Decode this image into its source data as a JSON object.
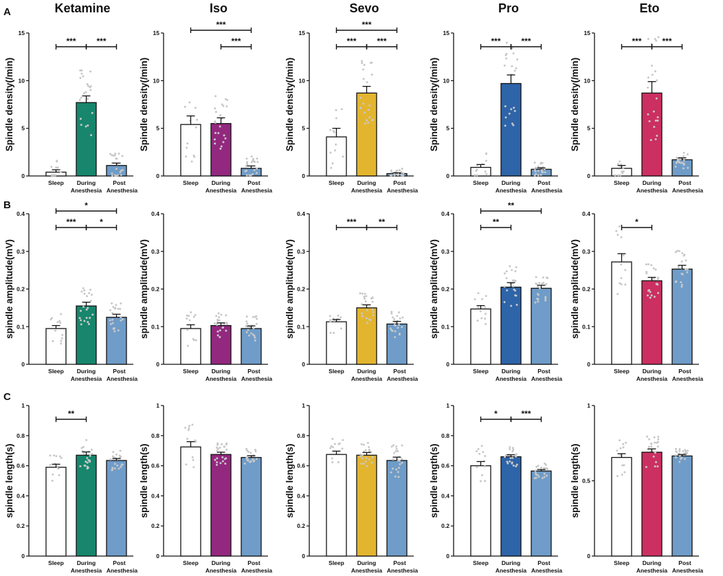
{
  "panel_labels": {
    "a": "A",
    "b": "B",
    "c": "C"
  },
  "column_titles": [
    "Ketamine",
    "Iso",
    "Sevo",
    "Pro",
    "Eto"
  ],
  "x_categories": [
    {
      "line1": "Sleep",
      "line2": ""
    },
    {
      "line1": "During",
      "line2": "Anesthesia"
    },
    {
      "line1": "Post",
      "line2": "Anesthesia"
    }
  ],
  "colors": {
    "sleep": "#ffffff",
    "post": "#6f9cc8",
    "Ketamine": "#17866c",
    "Iso": "#93287f",
    "Sevo": "#e3b52f",
    "Pro": "#2e64a8",
    "Eto": "#cc2f62",
    "dots": "#c8c8c8",
    "axis": "#111111"
  },
  "chart_data": [
    {
      "type": "bar",
      "row": "A",
      "drug": "Ketamine",
      "ylabel": "Spindle density(/min)",
      "ylim": [
        0,
        15
      ],
      "yticks": [
        0,
        5,
        10,
        15
      ],
      "categories": [
        "Sleep",
        "During Anesthesia",
        "Post Anesthesia"
      ],
      "values": [
        0.4,
        7.7,
        1.1
      ],
      "errors": [
        0.25,
        0.7,
        0.25
      ],
      "sig": [
        {
          "from": 0,
          "to": 1,
          "label": "***",
          "level": 0
        },
        {
          "from": 1,
          "to": 2,
          "label": "***",
          "level": 0
        }
      ]
    },
    {
      "type": "bar",
      "row": "A",
      "drug": "Iso",
      "ylabel": "Spindle density(/min)",
      "ylim": [
        0,
        15
      ],
      "yticks": [
        0,
        5,
        10,
        15
      ],
      "categories": [
        "Sleep",
        "During Anesthesia",
        "Post Anesthesia"
      ],
      "values": [
        5.4,
        5.5,
        0.8
      ],
      "errors": [
        0.9,
        0.6,
        0.25
      ],
      "sig": [
        {
          "from": 1,
          "to": 2,
          "label": "***",
          "level": 0
        },
        {
          "from": 0,
          "to": 2,
          "label": "***",
          "level": 1
        }
      ]
    },
    {
      "type": "bar",
      "row": "A",
      "drug": "Sevo",
      "ylabel": "Spindle density(/min)",
      "ylim": [
        0,
        15
      ],
      "yticks": [
        0,
        5,
        10,
        15
      ],
      "categories": [
        "Sleep",
        "During Anesthesia",
        "Post Anesthesia"
      ],
      "values": [
        4.1,
        8.7,
        0.25
      ],
      "errors": [
        0.9,
        0.7,
        0.08
      ],
      "sig": [
        {
          "from": 0,
          "to": 1,
          "label": "***",
          "level": 0
        },
        {
          "from": 1,
          "to": 2,
          "label": "***",
          "level": 0
        },
        {
          "from": 0,
          "to": 2,
          "label": "***",
          "level": 1
        }
      ]
    },
    {
      "type": "bar",
      "row": "A",
      "drug": "Pro",
      "ylabel": "Spindle density(/min)",
      "ylim": [
        0,
        15
      ],
      "yticks": [
        0,
        5,
        10,
        15
      ],
      "categories": [
        "Sleep",
        "During Anesthesia",
        "Post Anesthesia"
      ],
      "values": [
        0.9,
        9.7,
        0.7
      ],
      "errors": [
        0.3,
        0.9,
        0.15
      ],
      "sig": [
        {
          "from": 0,
          "to": 1,
          "label": "***",
          "level": 0
        },
        {
          "from": 1,
          "to": 2,
          "label": "***",
          "level": 0
        }
      ]
    },
    {
      "type": "bar",
      "row": "A",
      "drug": "Eto",
      "ylabel": "Spindle density(/min)",
      "ylim": [
        0,
        15
      ],
      "yticks": [
        0,
        5,
        10,
        15
      ],
      "categories": [
        "Sleep",
        "During Anesthesia",
        "Post Anesthesia"
      ],
      "values": [
        0.8,
        8.7,
        1.7
      ],
      "errors": [
        0.3,
        1.2,
        0.2
      ],
      "sig": [
        {
          "from": 0,
          "to": 1,
          "label": "***",
          "level": 0
        },
        {
          "from": 1,
          "to": 2,
          "label": "***",
          "level": 0
        }
      ]
    },
    {
      "type": "bar",
      "row": "B",
      "drug": "Ketamine",
      "ylabel": "spindle amplitude(mV)",
      "ylim": [
        0,
        0.4
      ],
      "yticks": [
        0,
        0.1,
        0.2,
        0.3,
        0.4
      ],
      "categories": [
        "Sleep",
        "During Anesthesia",
        "Post Anesthesia"
      ],
      "values": [
        0.095,
        0.155,
        0.125
      ],
      "errors": [
        0.008,
        0.01,
        0.008
      ],
      "sig": [
        {
          "from": 0,
          "to": 1,
          "label": "***",
          "level": 0
        },
        {
          "from": 1,
          "to": 2,
          "label": "*",
          "level": 0
        },
        {
          "from": 0,
          "to": 2,
          "label": "*",
          "level": 1
        }
      ]
    },
    {
      "type": "bar",
      "row": "B",
      "drug": "Iso",
      "ylabel": "spindle amplitude(mV)",
      "ylim": [
        0,
        0.4
      ],
      "yticks": [
        0,
        0.1,
        0.2,
        0.3,
        0.4
      ],
      "categories": [
        "Sleep",
        "During Anesthesia",
        "Post Anesthesia"
      ],
      "values": [
        0.095,
        0.103,
        0.095
      ],
      "errors": [
        0.01,
        0.007,
        0.007
      ],
      "sig": []
    },
    {
      "type": "bar",
      "row": "B",
      "drug": "Sevo",
      "ylabel": "spindle amplitude(mV)",
      "ylim": [
        0,
        0.4
      ],
      "yticks": [
        0,
        0.1,
        0.2,
        0.3,
        0.4
      ],
      "categories": [
        "Sleep",
        "During Anesthesia",
        "Post Anesthesia"
      ],
      "values": [
        0.113,
        0.15,
        0.107
      ],
      "errors": [
        0.006,
        0.008,
        0.007
      ],
      "sig": [
        {
          "from": 0,
          "to": 1,
          "label": "***",
          "level": 0
        },
        {
          "from": 1,
          "to": 2,
          "label": "**",
          "level": 0
        }
      ]
    },
    {
      "type": "bar",
      "row": "B",
      "drug": "Pro",
      "ylabel": "spindle amplitude(mV)",
      "ylim": [
        0,
        0.4
      ],
      "yticks": [
        0,
        0.1,
        0.2,
        0.3,
        0.4
      ],
      "categories": [
        "Sleep",
        "During Anesthesia",
        "Post Anesthesia"
      ],
      "values": [
        0.147,
        0.205,
        0.202
      ],
      "errors": [
        0.009,
        0.012,
        0.008
      ],
      "sig": [
        {
          "from": 0,
          "to": 1,
          "label": "**",
          "level": 0
        },
        {
          "from": 0,
          "to": 2,
          "label": "**",
          "level": 1
        }
      ]
    },
    {
      "type": "bar",
      "row": "B",
      "drug": "Eto",
      "ylabel": "spindle amplitude(mV)",
      "ylim": [
        0,
        0.4
      ],
      "yticks": [
        0,
        0.1,
        0.2,
        0.3,
        0.4
      ],
      "categories": [
        "Sleep",
        "During Anesthesia",
        "Post Anesthesia"
      ],
      "values": [
        0.272,
        0.222,
        0.253
      ],
      "errors": [
        0.022,
        0.009,
        0.01
      ],
      "sig": [
        {
          "from": 0,
          "to": 1,
          "label": "*",
          "level": 0
        }
      ]
    },
    {
      "type": "bar",
      "row": "C",
      "drug": "Ketamine",
      "ylabel": "spindle length(s)",
      "ylim": [
        0,
        1.0
      ],
      "yticks": [
        0,
        0.2,
        0.4,
        0.6,
        0.8,
        1.0
      ],
      "categories": [
        "Sleep",
        "During Anesthesia",
        "Post Anesthesia"
      ],
      "values": [
        0.59,
        0.67,
        0.635
      ],
      "errors": [
        0.02,
        0.022,
        0.013
      ],
      "sig": [
        {
          "from": 0,
          "to": 1,
          "label": "**",
          "level": 0
        }
      ]
    },
    {
      "type": "bar",
      "row": "C",
      "drug": "Iso",
      "ylabel": "spindle length(s)",
      "ylim": [
        0,
        1.0
      ],
      "yticks": [
        0,
        0.2,
        0.4,
        0.6,
        0.8,
        1.0
      ],
      "categories": [
        "Sleep",
        "During Anesthesia",
        "Post Anesthesia"
      ],
      "values": [
        0.725,
        0.675,
        0.655
      ],
      "errors": [
        0.035,
        0.015,
        0.012
      ],
      "sig": []
    },
    {
      "type": "bar",
      "row": "C",
      "drug": "Sevo",
      "ylabel": "spindle length(s)",
      "ylim": [
        0,
        1.0
      ],
      "yticks": [
        0,
        0.2,
        0.4,
        0.6,
        0.8,
        1.0
      ],
      "categories": [
        "Sleep",
        "During Anesthesia",
        "Post Anesthesia"
      ],
      "values": [
        0.675,
        0.67,
        0.635
      ],
      "errors": [
        0.022,
        0.018,
        0.022
      ],
      "sig": []
    },
    {
      "type": "bar",
      "row": "C",
      "drug": "Pro",
      "ylabel": "spindle length(s)",
      "ylim": [
        0,
        1.0
      ],
      "yticks": [
        0,
        0.2,
        0.4,
        0.6,
        0.8,
        1.0
      ],
      "categories": [
        "Sleep",
        "During Anesthesia",
        "Post Anesthesia"
      ],
      "values": [
        0.6,
        0.66,
        0.565
      ],
      "errors": [
        0.028,
        0.013,
        0.01
      ],
      "sig": [
        {
          "from": 0,
          "to": 1,
          "label": "*",
          "level": 0
        },
        {
          "from": 1,
          "to": 2,
          "label": "***",
          "level": 0
        }
      ]
    },
    {
      "type": "bar",
      "row": "C",
      "drug": "Eto",
      "ylabel": "spindle length(s)",
      "ylim": [
        0,
        1.0
      ],
      "yticks": [
        0,
        0.5,
        1.0
      ],
      "categories": [
        "Sleep",
        "During Anesthesia",
        "Post Anesthesia"
      ],
      "values": [
        0.655,
        0.69,
        0.665
      ],
      "errors": [
        0.025,
        0.022,
        0.01
      ],
      "sig": []
    }
  ]
}
